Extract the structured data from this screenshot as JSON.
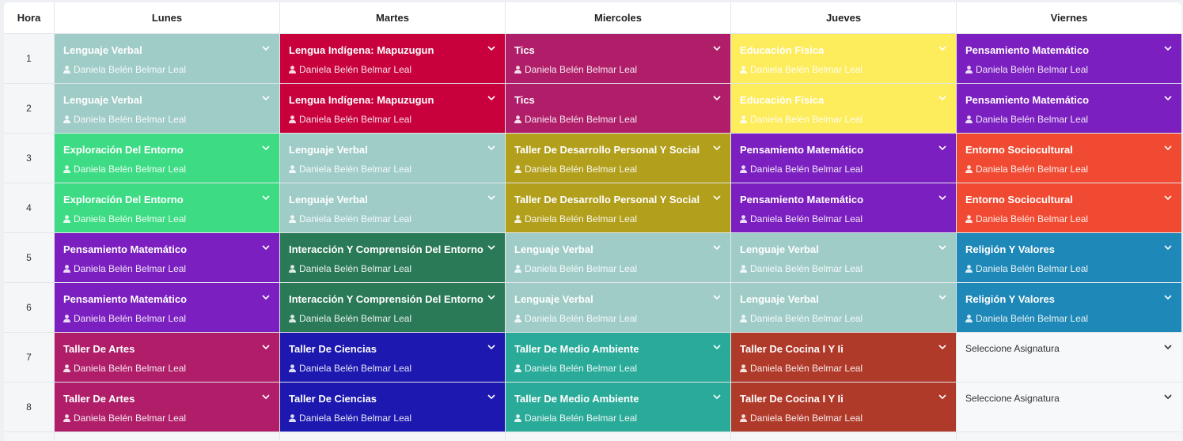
{
  "header": [
    "Hora",
    "Lunes",
    "Martes",
    "Miercoles",
    "Jueves",
    "Viernes"
  ],
  "rows": [
    {
      "hour": "1",
      "cells": [
        {
          "subject": "Lenguaje Verbal",
          "teacher": "Daniela Belén Belmar Leal",
          "color": "#a0ccc8"
        },
        {
          "subject": "Lengua Indígena: Mapuzugun",
          "teacher": "Daniela Belén Belmar Leal",
          "color": "#c8003c"
        },
        {
          "subject": "Tics",
          "teacher": "Daniela Belén Belmar Leal",
          "color": "#b01e6a"
        },
        {
          "subject": "Educación Física",
          "teacher": "Daniela Belén Belmar Leal",
          "color": "#fdec5c"
        },
        {
          "subject": "Pensamiento Matemático",
          "teacher": "Daniela Belén Belmar Leal",
          "color": "#7b1fc0"
        }
      ]
    },
    {
      "hour": "2",
      "cells": [
        {
          "subject": "Lenguaje Verbal",
          "teacher": "Daniela Belén Belmar Leal",
          "color": "#a0ccc8"
        },
        {
          "subject": "Lengua Indígena: Mapuzugun",
          "teacher": "Daniela Belén Belmar Leal",
          "color": "#c8003c"
        },
        {
          "subject": "Tics",
          "teacher": "Daniela Belén Belmar Leal",
          "color": "#b01e6a"
        },
        {
          "subject": "Educación Física",
          "teacher": "Daniela Belén Belmar Leal",
          "color": "#fdec5c"
        },
        {
          "subject": "Pensamiento Matemático",
          "teacher": "Daniela Belén Belmar Leal",
          "color": "#7b1fc0"
        }
      ]
    },
    {
      "hour": "3",
      "cells": [
        {
          "subject": "Exploración Del Entorno",
          "teacher": "Daniela Belén Belmar Leal",
          "color": "#3ddc84"
        },
        {
          "subject": "Lenguaje Verbal",
          "teacher": "Daniela Belén Belmar Leal",
          "color": "#a0ccc8"
        },
        {
          "subject": "Taller De Desarrollo Personal Y Social",
          "teacher": "Daniela Belén Belmar Leal",
          "color": "#b29f1c"
        },
        {
          "subject": "Pensamiento Matemático",
          "teacher": "Daniela Belén Belmar Leal",
          "color": "#7b1fc0"
        },
        {
          "subject": "Entorno Sociocultural",
          "teacher": "Daniela Belén Belmar Leal",
          "color": "#f04a32"
        }
      ]
    },
    {
      "hour": "4",
      "cells": [
        {
          "subject": "Exploración Del Entorno",
          "teacher": "Daniela Belén Belmar Leal",
          "color": "#3ddc84"
        },
        {
          "subject": "Lenguaje Verbal",
          "teacher": "Daniela Belén Belmar Leal",
          "color": "#a0ccc8"
        },
        {
          "subject": "Taller De Desarrollo Personal Y Social",
          "teacher": "Daniela Belén Belmar Leal",
          "color": "#b29f1c"
        },
        {
          "subject": "Pensamiento Matemático",
          "teacher": "Daniela Belén Belmar Leal",
          "color": "#7b1fc0"
        },
        {
          "subject": "Entorno Sociocultural",
          "teacher": "Daniela Belén Belmar Leal",
          "color": "#f04a32"
        }
      ]
    },
    {
      "hour": "5",
      "cells": [
        {
          "subject": "Pensamiento Matemático",
          "teacher": "Daniela Belén Belmar Leal",
          "color": "#7b1fc0"
        },
        {
          "subject": "Interacción Y Comprensión Del Entorno",
          "teacher": "Daniela Belén Belmar Leal",
          "color": "#2a7a57"
        },
        {
          "subject": "Lenguaje Verbal",
          "teacher": "Daniela Belén Belmar Leal",
          "color": "#a0ccc8"
        },
        {
          "subject": "Lenguaje Verbal",
          "teacher": "Daniela Belén Belmar Leal",
          "color": "#a0ccc8"
        },
        {
          "subject": "Religión Y Valores",
          "teacher": "Daniela Belén Belmar Leal",
          "color": "#1e88b8"
        }
      ]
    },
    {
      "hour": "6",
      "cells": [
        {
          "subject": "Pensamiento Matemático",
          "teacher": "Daniela Belén Belmar Leal",
          "color": "#7b1fc0"
        },
        {
          "subject": "Interacción Y Comprensión Del Entorno",
          "teacher": "Daniela Belén Belmar Leal",
          "color": "#2a7a57"
        },
        {
          "subject": "Lenguaje Verbal",
          "teacher": "Daniela Belén Belmar Leal",
          "color": "#a0ccc8"
        },
        {
          "subject": "Lenguaje Verbal",
          "teacher": "Daniela Belén Belmar Leal",
          "color": "#a0ccc8"
        },
        {
          "subject": "Religión Y Valores",
          "teacher": "Daniela Belén Belmar Leal",
          "color": "#1e88b8"
        }
      ]
    },
    {
      "hour": "7",
      "cells": [
        {
          "subject": "Taller De Artes",
          "teacher": "Daniela Belén Belmar Leal",
          "color": "#b01e6a"
        },
        {
          "subject": "Taller De Ciencias",
          "teacher": "Daniela Belén Belmar Leal",
          "color": "#1c18b0"
        },
        {
          "subject": "Taller De Medio Ambiente",
          "teacher": "Daniela Belén Belmar Leal",
          "color": "#2aab9a"
        },
        {
          "subject": "Taller De Cocina I Y Ii",
          "teacher": "Daniela Belén Belmar Leal",
          "color": "#b03a2a"
        },
        {
          "subject": "Seleccione Asignatura"
        }
      ]
    },
    {
      "hour": "8",
      "cells": [
        {
          "subject": "Taller De Artes",
          "teacher": "Daniela Belén Belmar Leal",
          "color": "#b01e6a"
        },
        {
          "subject": "Taller De Ciencias",
          "teacher": "Daniela Belén Belmar Leal",
          "color": "#1c18b0"
        },
        {
          "subject": "Taller De Medio Ambiente",
          "teacher": "Daniela Belén Belmar Leal",
          "color": "#2aab9a"
        },
        {
          "subject": "Taller De Cocina I Y Ii",
          "teacher": "Daniela Belén Belmar Leal",
          "color": "#b03a2a"
        },
        {
          "subject": "Seleccione Asignatura"
        }
      ]
    }
  ]
}
